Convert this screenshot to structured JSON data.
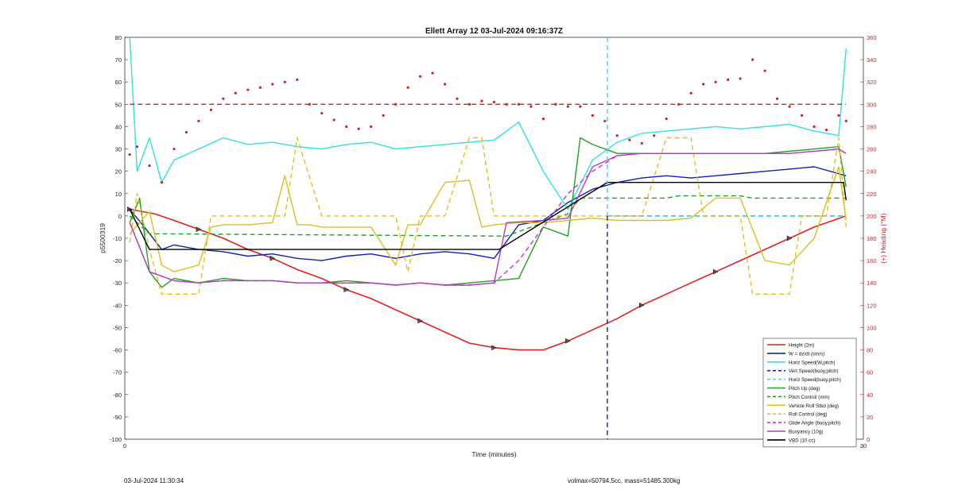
{
  "chart_data": {
    "type": "line",
    "title": "Ellett Array 12 03-Jul-2024 09:16:37Z",
    "xlabel": "Time (minutes)",
    "ylabel": "p5500319",
    "y2label": "(+) Heading (°M)",
    "xlim": [
      0,
      30
    ],
    "ylim": [
      -100,
      80
    ],
    "y2lim": [
      0,
      360
    ],
    "x_ticks": [
      "0",
      "30"
    ],
    "y_ticks": [
      "80",
      "70",
      "60",
      "50",
      "40",
      "30",
      "20",
      "10",
      "0",
      "-10",
      "-20",
      "-30",
      "-40",
      "-50",
      "-60",
      "-70",
      "-80",
      "-90",
      "-100"
    ],
    "y2_ticks": [
      "360",
      "340",
      "320",
      "300",
      "280",
      "260",
      "240",
      "220",
      "200",
      "180",
      "160",
      "140",
      "120",
      "100",
      "80",
      "60",
      "40",
      "20",
      "0"
    ],
    "legend_position": "bottom-right",
    "grid": false,
    "series": [
      {
        "name": "Height (2m)",
        "color": "#e02020",
        "style": "solid",
        "x": [
          0.2,
          1.2,
          2,
          3,
          4,
          5,
          6,
          7,
          8,
          9,
          10,
          11,
          12,
          13,
          14,
          15,
          16,
          17,
          18,
          19,
          20,
          21,
          22,
          23,
          24,
          25,
          26,
          27,
          28,
          29.3
        ],
        "y": [
          3,
          1,
          -2,
          -6,
          -10,
          -15,
          -19,
          -24,
          -28,
          -33,
          -37,
          -42,
          -47,
          -52,
          -57,
          -59,
          -60,
          -60,
          -56,
          -51,
          -46,
          -40,
          -35,
          -30,
          -25,
          -20,
          -15,
          -10,
          -5,
          0
        ]
      },
      {
        "name": "W = dz/dt (cm/s)",
        "color": "#1020b0",
        "style": "solid",
        "x": [
          0.2,
          0.8,
          1.5,
          2,
          3,
          4,
          5,
          6,
          7,
          8,
          9,
          10,
          11,
          12,
          13,
          14,
          15,
          16,
          17,
          18,
          19,
          20,
          21,
          22,
          23,
          24,
          25,
          26,
          27,
          28,
          29.3
        ],
        "y": [
          3,
          -5,
          -15,
          -13,
          -15,
          -16,
          -18,
          -17,
          -19,
          -20,
          -18,
          -17,
          -19,
          -17,
          -16,
          -17,
          -19,
          -4,
          -2,
          6,
          12,
          15,
          17,
          18,
          17,
          18,
          19,
          20,
          21,
          22,
          18
        ]
      },
      {
        "name": "Horiz Speed(W,pitch)",
        "color": "#30e0e0",
        "style": "solid",
        "x": [
          0.2,
          0.5,
          1,
          1.5,
          2,
          3,
          4,
          5,
          6,
          7,
          8,
          9,
          10,
          11,
          12,
          13,
          14,
          15,
          16,
          17,
          18,
          19,
          20,
          21,
          22,
          23,
          24,
          25,
          26,
          27,
          28,
          29,
          29.3
        ],
        "y": [
          80,
          20,
          35,
          15,
          25,
          30,
          35,
          32,
          33,
          31,
          30,
          32,
          33,
          30,
          31,
          32,
          33,
          34,
          42,
          20,
          3,
          25,
          33,
          37,
          38,
          39,
          40,
          39,
          40,
          41,
          38,
          36,
          75
        ]
      },
      {
        "name": "Vert Speed(buoy,pitch)",
        "color": "#1020c0",
        "style": "dashed",
        "x": [
          19.6,
          29.3
        ],
        "y": [
          0,
          0
        ]
      },
      {
        "name": "Horiz Speed(buoy,pitch)",
        "color": "#30e0e0",
        "style": "dashed",
        "x": [
          19.6,
          29.3
        ],
        "y": [
          0,
          0
        ]
      },
      {
        "name": "Pitch Up (deg)",
        "color": "#20a020",
        "style": "solid",
        "x": [
          0.2,
          0.6,
          1,
          1.5,
          2,
          3,
          4,
          5,
          6,
          7,
          8,
          9,
          10,
          11,
          12,
          13,
          14,
          15,
          16,
          17,
          18,
          18.5,
          19,
          20,
          21,
          22,
          23,
          24,
          25,
          26,
          27,
          28,
          29,
          29.3
        ],
        "y": [
          -3,
          8,
          -25,
          -32,
          -28,
          -30,
          -28,
          -29,
          -29,
          -30,
          -30,
          -29,
          -30,
          -31,
          -30,
          -31,
          -30,
          -29,
          -28,
          -5,
          -9,
          35,
          32,
          28,
          28,
          28,
          28,
          28,
          28,
          28,
          29,
          30,
          31,
          13
        ]
      },
      {
        "name": "Pitch Control (mm)",
        "color": "#20a020",
        "style": "dashed",
        "x": [
          0.2,
          1,
          1.5,
          15,
          15.5,
          18,
          18.5,
          22,
          22.5,
          25,
          25.5,
          29.3
        ],
        "y": [
          0,
          -8,
          -8,
          -9,
          -9,
          1,
          8,
          8,
          9,
          9,
          8,
          8
        ]
      },
      {
        "name": "Vehicle Roll Stbd (deg)",
        "color": "#d8c020",
        "style": "solid",
        "x": [
          0.2,
          1,
          1.5,
          2,
          3,
          3.5,
          4,
          5,
          6,
          6.5,
          7,
          7.5,
          8,
          9,
          10,
          11,
          11.5,
          12,
          13,
          14,
          14.5,
          15,
          16,
          17,
          18,
          19,
          20,
          21,
          22,
          23,
          24,
          25,
          26,
          27,
          28,
          29,
          29.3
        ],
        "y": [
          -8,
          2,
          -22,
          -25,
          -22,
          -5,
          -4,
          -4,
          -3,
          18,
          -4,
          -4,
          -5,
          -5,
          -5,
          -22,
          -4,
          -4,
          15,
          16,
          -5,
          -4,
          -3,
          -3,
          -2,
          -1,
          -2,
          -2,
          -2,
          -1,
          8,
          8,
          -20,
          -22,
          -10,
          22,
          -2
        ]
      },
      {
        "name": "Roll Control (deg)",
        "color": "#e0c020",
        "style": "dashed",
        "x": [
          0.2,
          0.5,
          1,
          1.5,
          3,
          3.5,
          4,
          6.5,
          7,
          8,
          9,
          10,
          11,
          11.5,
          12,
          13,
          14,
          14.5,
          15,
          16,
          17,
          18,
          19,
          20,
          21,
          22,
          23,
          23.5,
          24,
          25,
          25.5,
          26,
          27,
          27.5,
          28,
          28.5,
          29,
          29.3
        ],
        "y": [
          -12,
          10,
          -15,
          -35,
          -35,
          0,
          0,
          0,
          35,
          0,
          0,
          0,
          0,
          -25,
          0,
          0,
          35,
          35,
          0,
          0,
          0,
          0,
          0,
          0,
          0,
          35,
          35,
          0,
          0,
          0,
          -35,
          -35,
          -35,
          0,
          0,
          0,
          35,
          -5
        ]
      },
      {
        "name": "Glide Angle (buoy,pitch)",
        "color": "#d030d0",
        "style": "dashed",
        "x": [
          0.2,
          1,
          2,
          3,
          4,
          5,
          6,
          7,
          8,
          9,
          10,
          11,
          12,
          13,
          14,
          15,
          16,
          17,
          18,
          19,
          20,
          21,
          22,
          23,
          24,
          25,
          26,
          27,
          28,
          29,
          29.3
        ],
        "y": [
          -3,
          -25,
          -29,
          -30,
          -29,
          -29,
          -29,
          -30,
          -30,
          -30,
          -30,
          -31,
          -30,
          -31,
          -31,
          -30,
          -20,
          -5,
          10,
          20,
          27,
          28,
          28,
          28,
          28,
          28,
          28,
          28,
          29,
          30,
          28
        ]
      },
      {
        "name": "Buoyancy (10g)",
        "color": "#b040c0",
        "style": "solid",
        "x": [
          0.2,
          1,
          2,
          3,
          4,
          5,
          6,
          7,
          8,
          9,
          10,
          11,
          12,
          13,
          14,
          15,
          15.5,
          17,
          18,
          19,
          20,
          21,
          22,
          23,
          24,
          25,
          26,
          27,
          28,
          29,
          29.3
        ],
        "y": [
          -3,
          -25,
          -29,
          -30,
          -29,
          -29,
          -29,
          -30,
          -30,
          -30,
          -30,
          -31,
          -30,
          -31,
          -31,
          -30,
          -3,
          -2,
          -1,
          22,
          27,
          28,
          28,
          28,
          28,
          28,
          28,
          28,
          29,
          30,
          28
        ]
      },
      {
        "name": "VBD (10 cc)",
        "color": "#000000",
        "style": "solid",
        "x": [
          0.2,
          1,
          15.2,
          19.6,
          29.2,
          29.3
        ],
        "y": [
          3,
          -15,
          -15,
          15,
          15,
          7
        ]
      },
      {
        "name": "(+) Heading (°M)",
        "color": "#d02020",
        "style": "dots",
        "axis": "right",
        "x": [
          0.2,
          0.5,
          1,
          1.5,
          2,
          2.5,
          3,
          3.5,
          4,
          4.5,
          5,
          5.5,
          6,
          6.5,
          7,
          7.5,
          8,
          8.5,
          9,
          9.5,
          10,
          10.5,
          11,
          11.5,
          12,
          12.5,
          13,
          13.5,
          14,
          14.5,
          15,
          15.5,
          16,
          16.5,
          17,
          17.5,
          18,
          18.5,
          19,
          19.5,
          20,
          20.5,
          21,
          21.5,
          22,
          22.5,
          23,
          23.5,
          24,
          24.5,
          25,
          25.5,
          26,
          26.5,
          27,
          27.5,
          28,
          28.5,
          29,
          29.3
        ],
        "y": [
          255,
          262,
          245,
          230,
          260,
          275,
          285,
          295,
          305,
          310,
          313,
          315,
          318,
          320,
          322,
          300,
          292,
          286,
          280,
          278,
          280,
          290,
          300,
          315,
          325,
          328,
          318,
          305,
          300,
          303,
          302,
          300,
          300,
          298,
          287,
          300,
          298,
          298,
          290,
          285,
          272,
          268,
          265,
          272,
          287,
          300,
          310,
          318,
          320,
          322,
          323,
          340,
          330,
          305,
          298,
          290,
          280,
          277,
          290,
          285
        ]
      },
      {
        "name": "Heading reference",
        "color": "#d02020",
        "style": "dashed",
        "axis": "right",
        "x": [
          0.2,
          29.3
        ],
        "y": [
          300,
          300
        ]
      },
      {
        "name": "Vertical marker",
        "color": "#30e0e0",
        "style": "dashed",
        "vertical": true,
        "x": [
          19.6,
          19.6
        ],
        "y": [
          80,
          0
        ]
      },
      {
        "name": "Vertical marker lower",
        "color": "#1020c0",
        "style": "dashed",
        "vertical": true,
        "x": [
          19.6,
          19.6
        ],
        "y": [
          0,
          -100
        ]
      }
    ],
    "legend": [
      "Height (2m)",
      "W = dz/dt (cm/s)",
      "Horiz Speed(W,pitch)",
      "Vert Speed(buoy,pitch)",
      "Horiz Speed(buoy,pitch)",
      "Pitch Up (deg)",
      "Pitch Control (mm)",
      "Vehicle Roll Stbd (deg)",
      "Roll Control (deg)",
      "Glide Angle (buoy,pitch)",
      "Buoyancy (10g)",
      "VBD (10 cc)"
    ]
  },
  "footer": {
    "left": "03-Jul-2024 11:30:34",
    "right": "volmax=50794.5cc, mass=51485.300kg"
  }
}
